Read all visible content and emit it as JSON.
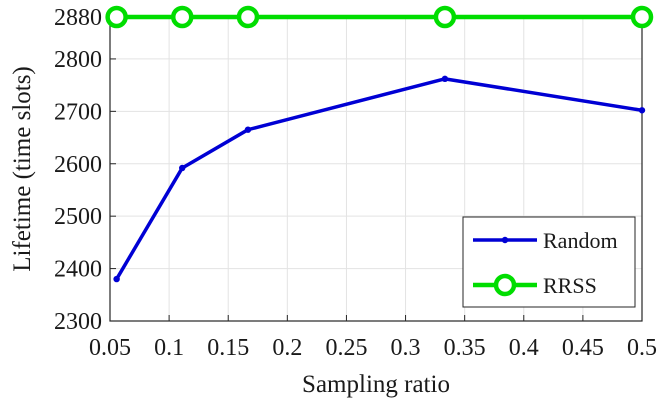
{
  "chart_data": {
    "type": "line",
    "xlabel": "Sampling ratio",
    "ylabel": "Lifetime (time slots)",
    "xlim": [
      0.05,
      0.5
    ],
    "ylim": [
      2300,
      2880
    ],
    "xticks": [
      "0.05",
      "0.1",
      "0.15",
      "0.2",
      "0.25",
      "0.3",
      "0.35",
      "0.4",
      "0.45",
      "0.5"
    ],
    "yticks": [
      "2300",
      "2400",
      "2500",
      "2600",
      "2700",
      "2800",
      "2880"
    ],
    "grid": true,
    "legend_position": "bottom-right",
    "series": [
      {
        "name": "Random",
        "color": "#0000d4",
        "marker": "dot",
        "x": [
          0.0556,
          0.1111,
          0.1667,
          0.3333,
          0.5
        ],
        "y": [
          2380,
          2592,
          2665,
          2762,
          2702
        ]
      },
      {
        "name": "RRSS",
        "color": "#00dd00",
        "marker": "circle",
        "x": [
          0.0556,
          0.1111,
          0.1667,
          0.3333,
          0.5
        ],
        "y": [
          2880,
          2880,
          2880,
          2880,
          2880
        ]
      }
    ]
  }
}
